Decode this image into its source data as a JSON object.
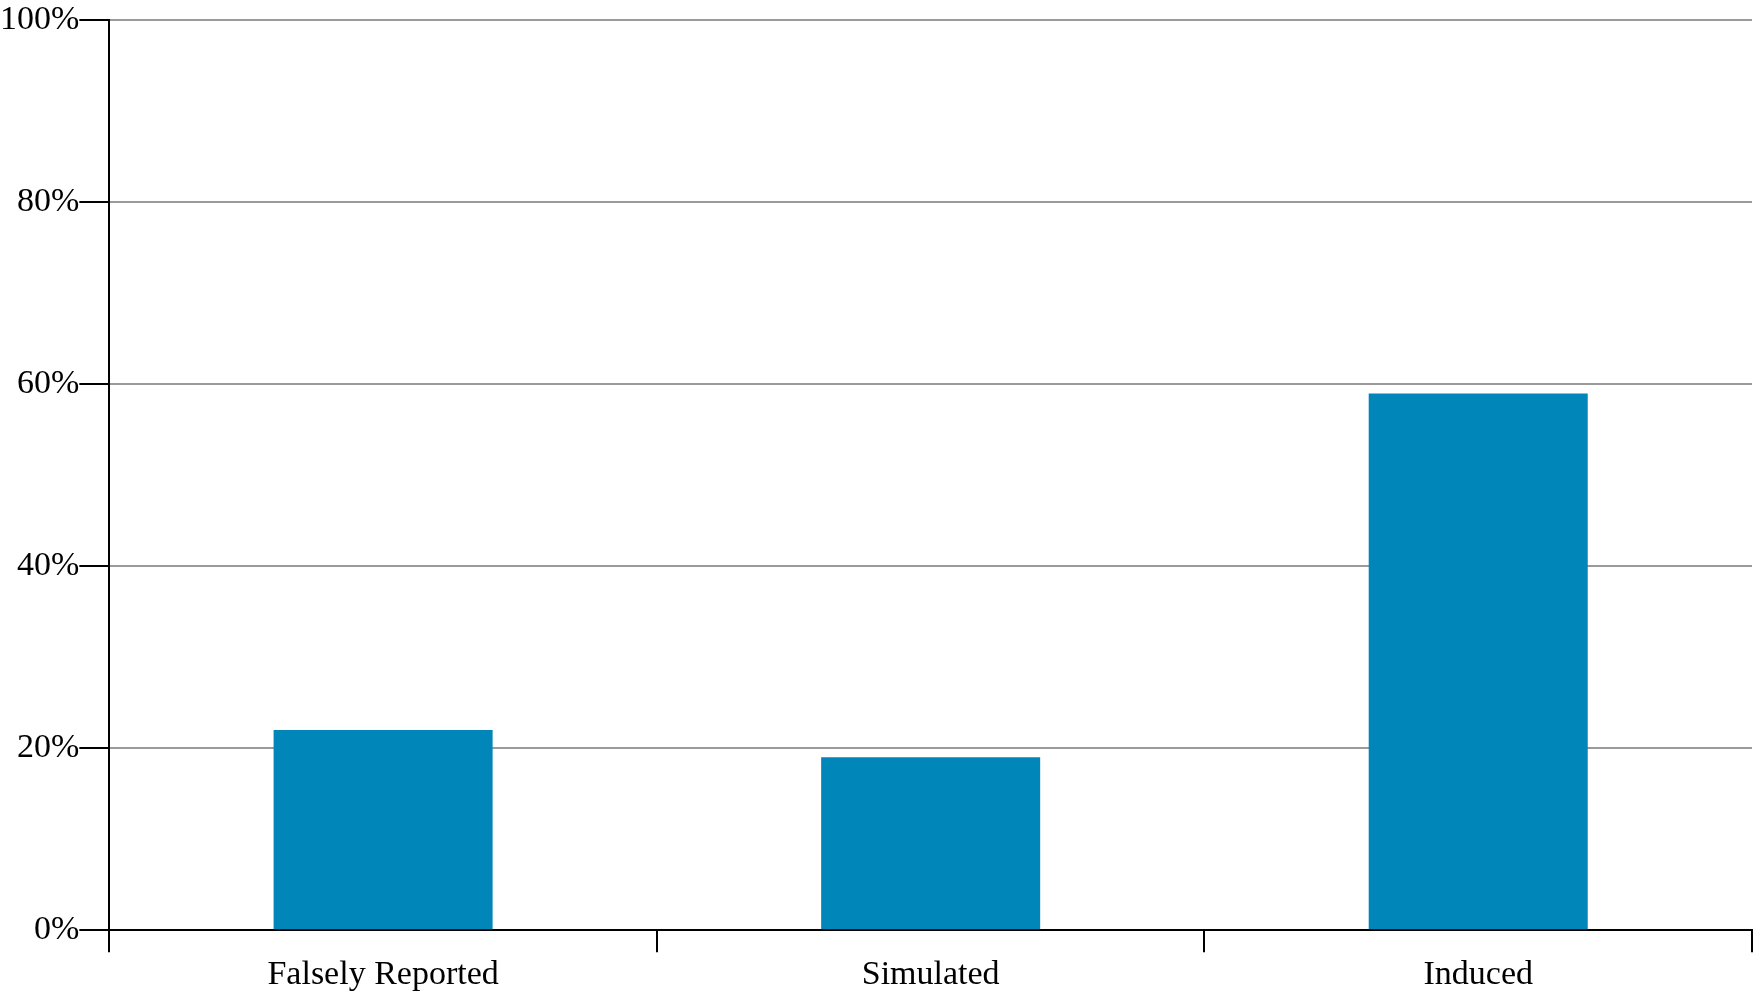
{
  "chart_data": {
    "type": "bar",
    "categories": [
      "Falsely Reported",
      "Simulated",
      "Induced"
    ],
    "values": [
      22,
      19,
      59
    ],
    "color": "#0086b8",
    "ylim": [
      0,
      100
    ],
    "yticks": [
      {
        "value": 0,
        "label": "0%"
      },
      {
        "value": 20,
        "label": "20%"
      },
      {
        "value": 40,
        "label": "40%"
      },
      {
        "value": 60,
        "label": "60%"
      },
      {
        "value": 80,
        "label": "80%"
      },
      {
        "value": 100,
        "label": "100%"
      }
    ],
    "grid": "y"
  }
}
